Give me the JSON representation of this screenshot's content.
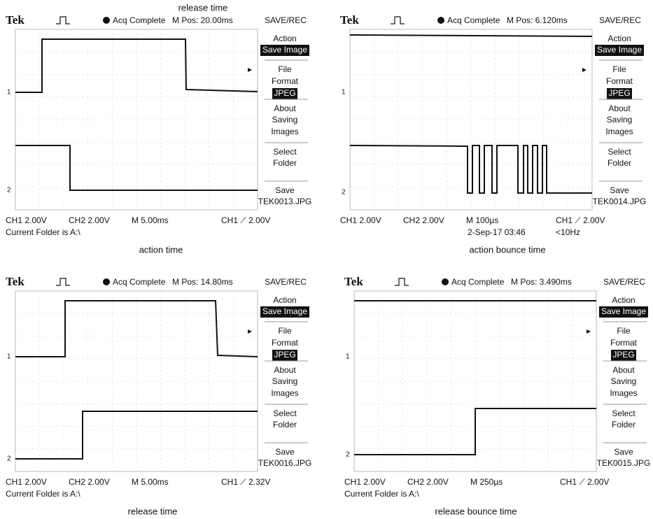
{
  "captions": [
    "release time",
    "action time",
    "action bounce time",
    "release time",
    "release bounce time"
  ],
  "panels": [
    {
      "logo": "Tek",
      "status": "Acq Complete",
      "position": "M Pos: 20.00ms",
      "menu_title": "SAVE/REC",
      "menu": [
        [
          "Action",
          "Save Image"
        ],
        [
          "File",
          "Format",
          "JPEG"
        ],
        [
          "About",
          "Saving",
          "Images"
        ],
        [
          "Select",
          "Folder"
        ],
        [
          "Save",
          "TEK0013.JPG"
        ]
      ],
      "markers": [
        "1",
        "2"
      ],
      "footer": {
        "ch1": "CH1 2.00V",
        "ch2": "CH2 2.00V",
        "timebase": "M 5.00ms",
        "trigger": "CH1 ⟋ 2.00V",
        "line2": "Current Folder is A:\\"
      }
    },
    {
      "logo": "Tek",
      "status": "Acq Complete",
      "position": "M Pos: 6.120ms",
      "menu_title": "SAVE/REC",
      "menu": [
        [
          "Action",
          "Save Image"
        ],
        [
          "File",
          "Format",
          "JPEG"
        ],
        [
          "About",
          "Saving",
          "Images"
        ],
        [
          "Select",
          "Folder"
        ],
        [
          "Save",
          "TEK0014.JPG"
        ]
      ],
      "markers": [
        "1",
        "2"
      ],
      "footer": {
        "ch1": "CH1 2.00V",
        "ch2": "CH2 2.00V",
        "timebase": "M 100µs",
        "trigger": "CH1 ⟋ 2.00V",
        "date": "2-Sep-17 03:46",
        "freq": "<10Hz"
      }
    },
    {
      "logo": "Tek",
      "status": "Acq Complete",
      "position": "M Pos: 14.80ms",
      "menu_title": "SAVE/REC",
      "menu": [
        [
          "Action",
          "Save Image"
        ],
        [
          "File",
          "Format",
          "JPEG"
        ],
        [
          "About",
          "Saving",
          "Images"
        ],
        [
          "Select",
          "Folder"
        ],
        [
          "Save",
          "TEK0016.JPG"
        ]
      ],
      "markers": [
        "1",
        "2"
      ],
      "footer": {
        "ch1": "CH1 2.00V",
        "ch2": "CH2 2.00V",
        "timebase": "M 5.00ms",
        "trigger": "CH1 ⟋ 2.32V",
        "line2": "Current Folder is A:\\"
      }
    },
    {
      "logo": "Tek",
      "status": "Acq Complete",
      "position": "M Pos: 3.490ms",
      "menu_title": "SAVE/REC",
      "menu": [
        [
          "Action",
          "Save Image"
        ],
        [
          "File",
          "Format",
          "JPEG"
        ],
        [
          "About",
          "Saving",
          "Images"
        ],
        [
          "Select",
          "Folder"
        ],
        [
          "Save",
          "TEK0015.JPG"
        ]
      ],
      "markers": [
        "1",
        "2"
      ],
      "footer": {
        "ch1": "CH1 2.00V",
        "ch2": "CH2 2.00V",
        "timebase": "M 250µs",
        "trigger": "CH1 ⟋ 2.00V",
        "line2": "Current Folder is A:\\"
      }
    }
  ]
}
